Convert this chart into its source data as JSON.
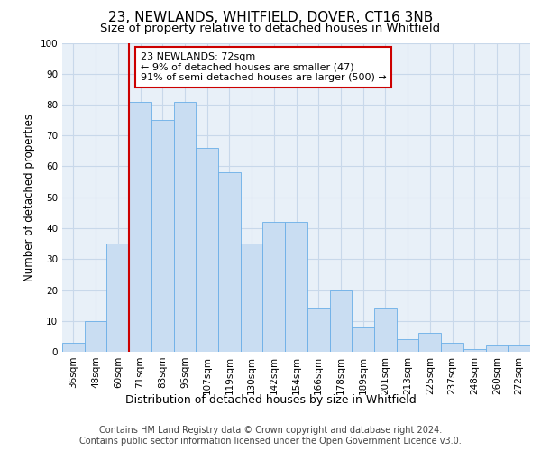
{
  "title": "23, NEWLANDS, WHITFIELD, DOVER, CT16 3NB",
  "subtitle": "Size of property relative to detached houses in Whitfield",
  "xlabel": "Distribution of detached houses by size in Whitfield",
  "ylabel": "Number of detached properties",
  "footer_line1": "Contains HM Land Registry data © Crown copyright and database right 2024.",
  "footer_line2": "Contains public sector information licensed under the Open Government Licence v3.0.",
  "bar_labels": [
    "36sqm",
    "48sqm",
    "60sqm",
    "71sqm",
    "83sqm",
    "95sqm",
    "107sqm",
    "119sqm",
    "130sqm",
    "142sqm",
    "154sqm",
    "166sqm",
    "178sqm",
    "189sqm",
    "201sqm",
    "213sqm",
    "225sqm",
    "237sqm",
    "248sqm",
    "260sqm",
    "272sqm"
  ],
  "bar_values": [
    3,
    10,
    35,
    81,
    75,
    81,
    66,
    58,
    35,
    42,
    42,
    14,
    20,
    8,
    14,
    4,
    6,
    3,
    1,
    2,
    2
  ],
  "bar_color": "#c9ddf2",
  "bar_edge_color": "#6aaee8",
  "grid_color": "#c8d8ea",
  "plot_bg_color": "#e8f0f8",
  "annotation_text": "23 NEWLANDS: 72sqm\n← 9% of detached houses are smaller (47)\n91% of semi-detached houses are larger (500) →",
  "annotation_box_facecolor": "#ffffff",
  "annotation_box_edge": "#cc0000",
  "ylim": [
    0,
    100
  ],
  "yticks": [
    0,
    10,
    20,
    30,
    40,
    50,
    60,
    70,
    80,
    90,
    100
  ],
  "title_fontsize": 11,
  "subtitle_fontsize": 9.5,
  "ylabel_fontsize": 8.5,
  "xlabel_fontsize": 9,
  "tick_fontsize": 7.5,
  "footer_fontsize": 7,
  "ann_fontsize": 8
}
